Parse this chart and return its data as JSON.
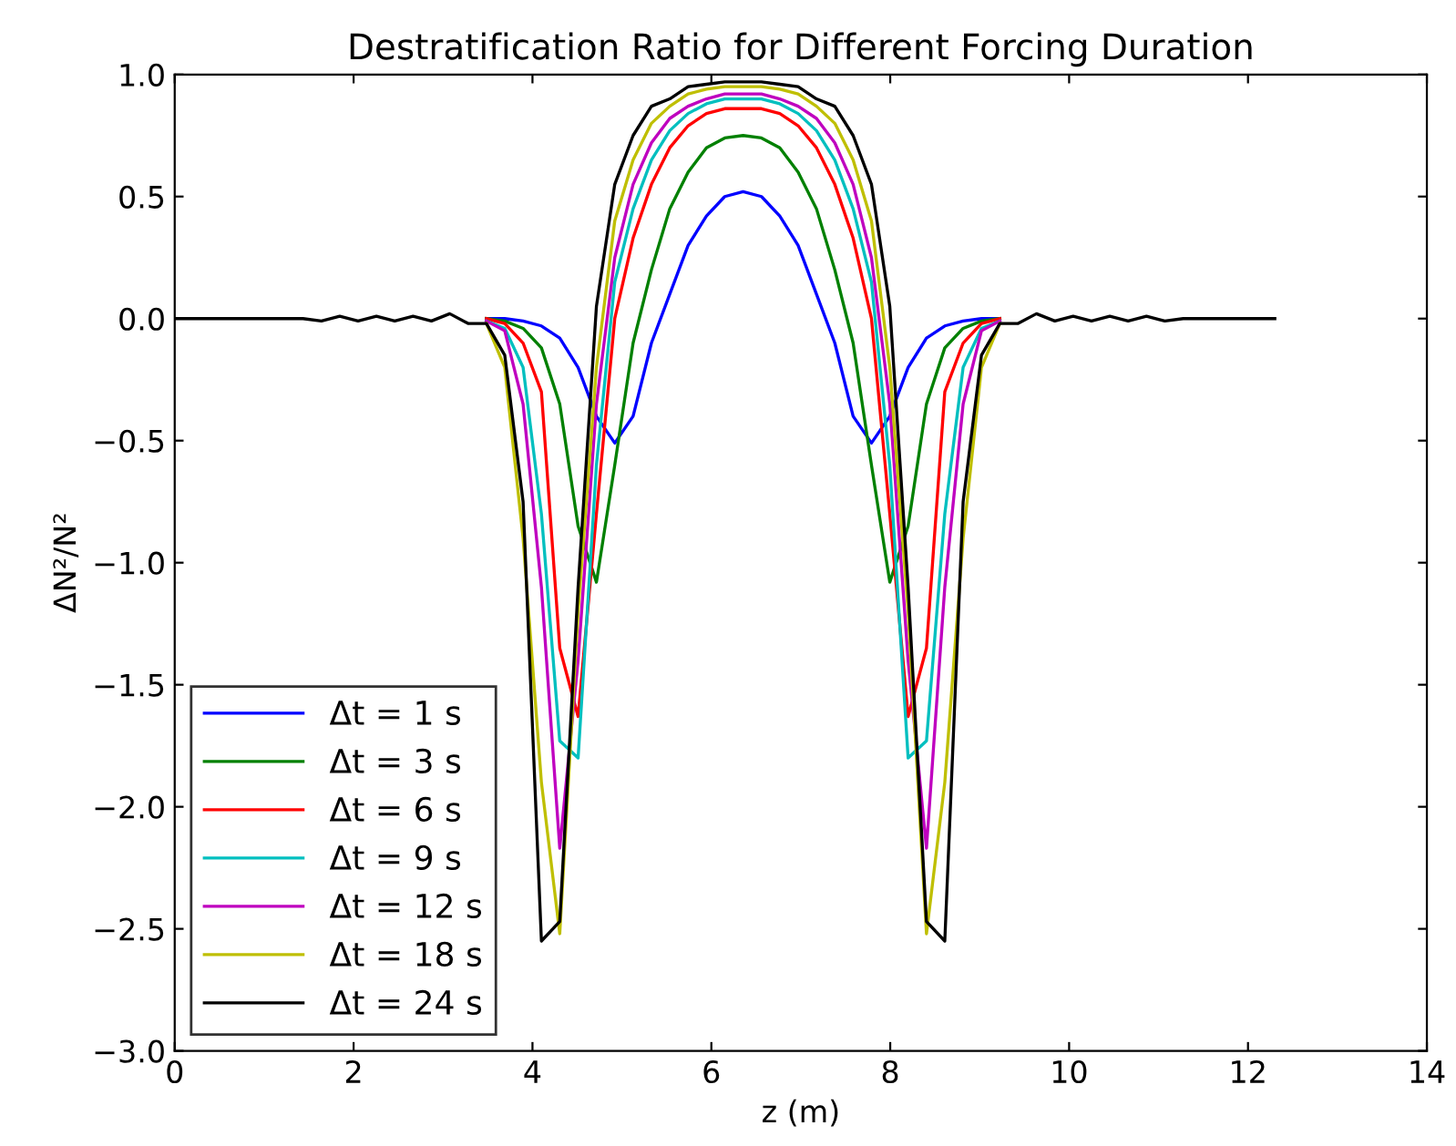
{
  "chart_data": {
    "type": "line",
    "title": "Destratification Ratio for Different Forcing Duration",
    "xlabel": "z (m)",
    "ylabel": "ΔN²/N²",
    "x": [
      0,
      0.205,
      0.41,
      0.615,
      0.82,
      1.025,
      1.23,
      1.435,
      1.64,
      1.845,
      2.05,
      2.255,
      2.46,
      2.665,
      2.87,
      3.075,
      3.28,
      3.485,
      3.69,
      3.895,
      4.1,
      4.305,
      4.51,
      4.715,
      4.92,
      5.125,
      5.33,
      5.535,
      5.74,
      5.945,
      6.15,
      6.355,
      6.56,
      6.765,
      6.97,
      7.175,
      7.38,
      7.585,
      7.79,
      7.995,
      8.2,
      8.405,
      8.61,
      8.815,
      9.02,
      9.225,
      9.43,
      9.635,
      9.84,
      10.045,
      10.25,
      10.455,
      10.66,
      10.865,
      11.07,
      11.275,
      11.48,
      11.685,
      11.89,
      12.095,
      12.3
    ],
    "series": [
      {
        "name": "Δt = 1 s",
        "color": "#0000ff",
        "values": [
          null,
          null,
          null,
          null,
          null,
          null,
          null,
          null,
          null,
          null,
          null,
          null,
          null,
          null,
          null,
          null,
          null,
          0,
          0,
          -0.01,
          -0.03,
          -0.08,
          -0.2,
          -0.4,
          -0.51,
          -0.4,
          -0.1,
          0.1,
          0.3,
          0.42,
          0.5,
          0.52,
          0.5,
          0.42,
          0.3,
          0.1,
          -0.1,
          -0.4,
          -0.51,
          -0.4,
          -0.2,
          -0.08,
          -0.03,
          -0.01,
          0,
          0,
          null,
          null,
          null,
          null,
          null,
          null,
          null,
          null,
          null,
          null,
          null,
          null,
          null,
          null,
          null
        ]
      },
      {
        "name": "Δt = 3 s",
        "color": "#008000",
        "values": [
          null,
          null,
          null,
          null,
          null,
          null,
          null,
          null,
          null,
          null,
          null,
          null,
          null,
          null,
          null,
          null,
          null,
          0,
          -0.01,
          -0.04,
          -0.12,
          -0.35,
          -0.85,
          -1.08,
          -0.6,
          -0.1,
          0.2,
          0.45,
          0.6,
          0.7,
          0.74,
          0.75,
          0.74,
          0.7,
          0.6,
          0.45,
          0.2,
          -0.1,
          -0.6,
          -1.08,
          -0.85,
          -0.35,
          -0.12,
          -0.04,
          -0.01,
          0,
          null,
          null,
          null,
          null,
          null,
          null,
          null,
          null,
          null,
          null,
          null,
          null,
          null,
          null,
          null
        ]
      },
      {
        "name": "Δt = 6 s",
        "color": "#ff0000",
        "values": [
          null,
          null,
          null,
          null,
          null,
          null,
          null,
          null,
          null,
          null,
          null,
          null,
          null,
          null,
          null,
          null,
          null,
          0,
          -0.02,
          -0.1,
          -0.3,
          -1.35,
          -1.63,
          -0.8,
          0,
          0.33,
          0.55,
          0.7,
          0.79,
          0.84,
          0.86,
          0.86,
          0.86,
          0.84,
          0.79,
          0.7,
          0.55,
          0.33,
          0,
          -0.8,
          -1.63,
          -1.35,
          -0.3,
          -0.1,
          -0.02,
          0,
          null,
          null,
          null,
          null,
          null,
          null,
          null,
          null,
          null,
          null,
          null,
          null,
          null,
          null,
          null
        ]
      },
      {
        "name": "Δt = 9 s",
        "color": "#00bfbf",
        "values": [
          null,
          null,
          null,
          null,
          null,
          null,
          null,
          null,
          null,
          null,
          null,
          null,
          null,
          null,
          null,
          null,
          null,
          -0.01,
          -0.04,
          -0.2,
          -0.8,
          -1.73,
          -1.8,
          -0.6,
          0.15,
          0.45,
          0.65,
          0.77,
          0.84,
          0.88,
          0.9,
          0.9,
          0.9,
          0.88,
          0.84,
          0.77,
          0.65,
          0.45,
          0.15,
          -0.6,
          -1.8,
          -1.73,
          -0.8,
          -0.2,
          -0.04,
          -0.01,
          null,
          null,
          null,
          null,
          null,
          null,
          null,
          null,
          null,
          null,
          null,
          null,
          null,
          null,
          null
        ]
      },
      {
        "name": "Δt = 12 s",
        "color": "#bf00bf",
        "values": [
          null,
          null,
          null,
          null,
          null,
          null,
          null,
          null,
          null,
          null,
          null,
          null,
          null,
          null,
          null,
          null,
          null,
          -0.01,
          -0.05,
          -0.35,
          -1.1,
          -2.17,
          -1.4,
          -0.35,
          0.25,
          0.55,
          0.72,
          0.82,
          0.87,
          0.9,
          0.92,
          0.92,
          0.92,
          0.9,
          0.87,
          0.82,
          0.72,
          0.55,
          0.25,
          -0.35,
          -1.4,
          -2.17,
          -1.1,
          -0.35,
          -0.05,
          -0.01,
          null,
          null,
          null,
          null,
          null,
          null,
          null,
          null,
          null,
          null,
          null,
          null,
          null,
          null,
          null
        ]
      },
      {
        "name": "Δt = 18 s",
        "color": "#bfbf00",
        "values": [
          null,
          null,
          null,
          null,
          null,
          null,
          null,
          null,
          null,
          null,
          null,
          null,
          null,
          null,
          null,
          null,
          null,
          -0.02,
          -0.2,
          -0.9,
          -1.9,
          -2.52,
          -1.2,
          -0.2,
          0.4,
          0.65,
          0.8,
          0.87,
          0.92,
          0.94,
          0.95,
          0.95,
          0.95,
          0.94,
          0.92,
          0.87,
          0.8,
          0.65,
          0.4,
          -0.2,
          -1.2,
          -2.52,
          -1.9,
          -0.9,
          -0.2,
          -0.02,
          null,
          null,
          null,
          null,
          null,
          null,
          null,
          null,
          null,
          null,
          null,
          null,
          null,
          null,
          null
        ]
      },
      {
        "name": "Δt = 24 s",
        "color": "#000000",
        "values": [
          0,
          0,
          0,
          0,
          0,
          0,
          0,
          0,
          -0.01,
          0.01,
          -0.01,
          0.01,
          -0.01,
          0.01,
          -0.01,
          0.02,
          -0.02,
          -0.02,
          -0.15,
          -0.75,
          -2.55,
          -2.47,
          -1.1,
          0.05,
          0.55,
          0.75,
          0.87,
          0.9,
          0.95,
          0.96,
          0.97,
          0.97,
          0.97,
          0.96,
          0.95,
          0.9,
          0.87,
          0.75,
          0.55,
          0.05,
          -1.1,
          -2.47,
          -2.55,
          -0.75,
          -0.15,
          -0.02,
          -0.02,
          0.02,
          -0.01,
          0.01,
          -0.01,
          0.01,
          -0.01,
          0.01,
          -0.01,
          0,
          0,
          0,
          0,
          0,
          0
        ]
      }
    ],
    "xlim": [
      0,
      14
    ],
    "xticks": [
      0,
      2,
      4,
      6,
      8,
      10,
      12,
      14
    ],
    "ylim": [
      -3,
      1
    ],
    "yticks": [
      {
        "value": -3,
        "label": "−3.0"
      },
      {
        "value": -2.5,
        "label": "−2.5"
      },
      {
        "value": -2,
        "label": "−2.0"
      },
      {
        "value": -1.5,
        "label": "−1.5"
      },
      {
        "value": -1,
        "label": "−1.0"
      },
      {
        "value": -0.5,
        "label": "−0.5"
      },
      {
        "value": 0,
        "label": "0.0"
      },
      {
        "value": 0.5,
        "label": "0.5"
      },
      {
        "value": 1,
        "label": "1.0"
      }
    ],
    "grid": false,
    "legend": "bottom left",
    "marker": "none",
    "line_style": "solid"
  }
}
